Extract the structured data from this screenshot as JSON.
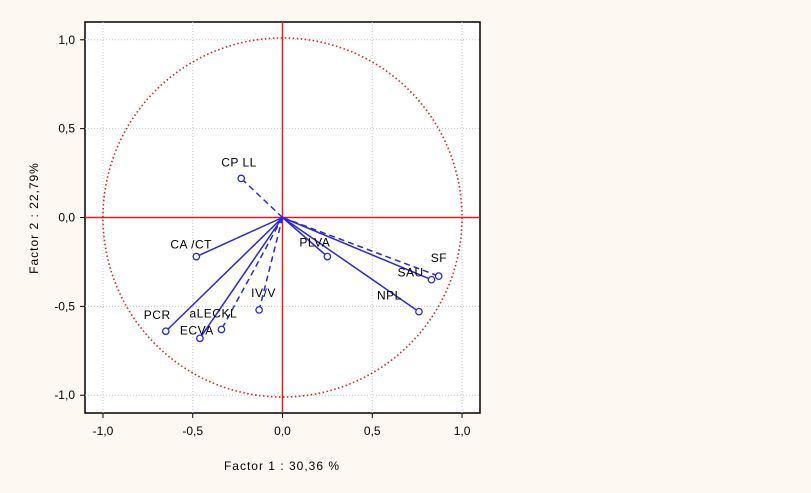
{
  "chart_data": {
    "type": "scatter",
    "subtype": "correlation-circle",
    "title": "",
    "xlabel": "Factor 1 : 30,36 %",
    "ylabel": "Factor 2 : 22,79%",
    "xlim": [
      -1.1,
      1.1
    ],
    "ylim": [
      -1.1,
      1.1
    ],
    "xticks": [
      "-1,0",
      "-0,5",
      "0,0",
      "0,5",
      "1,0"
    ],
    "yticks": [
      "1,0",
      "0,5",
      "0,0",
      "-0,5",
      "-1,0"
    ],
    "grid": true,
    "unit_circle": true,
    "colors": {
      "vectors": "#2828e0",
      "circle": "#e02020",
      "axes": "#e02020",
      "grid": "#c8c8c8"
    },
    "points": [
      {
        "label": "CP LL",
        "x": -0.23,
        "y": 0.22,
        "dashed": true
      },
      {
        "label": "CA /CT",
        "x": -0.48,
        "y": -0.22,
        "dashed": false
      },
      {
        "label": "PCR",
        "x": -0.65,
        "y": -0.64,
        "dashed": false
      },
      {
        "label": "ECVA",
        "x": -0.46,
        "y": -0.68,
        "dashed": false
      },
      {
        "label": "aLECKL",
        "x": -0.34,
        "y": -0.63,
        "dashed": true
      },
      {
        "label": "IV/V",
        "x": -0.13,
        "y": -0.52,
        "dashed": true
      },
      {
        "label": "PLVA",
        "x": 0.25,
        "y": -0.22,
        "dashed": false
      },
      {
        "label": "SF",
        "x": 0.87,
        "y": -0.33,
        "dashed": true
      },
      {
        "label": "SAU",
        "x": 0.83,
        "y": -0.35,
        "dashed": false
      },
      {
        "label": "NPL",
        "x": 0.76,
        "y": -0.53,
        "dashed": false
      }
    ]
  }
}
